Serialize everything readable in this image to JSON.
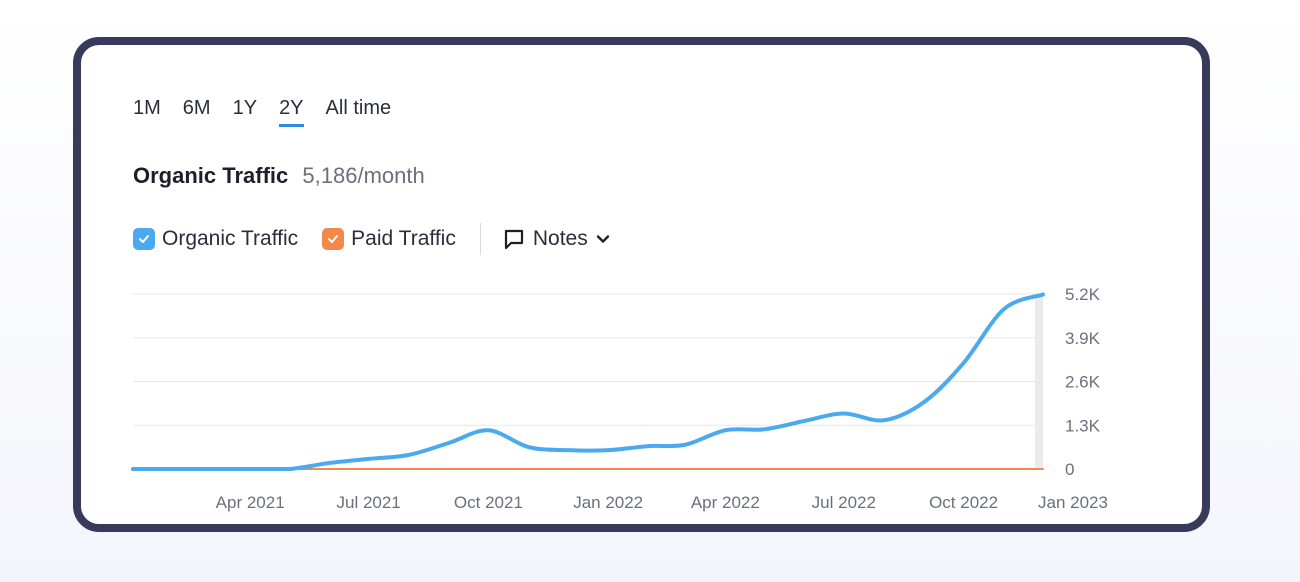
{
  "range_tabs": [
    "1M",
    "6M",
    "1Y",
    "2Y",
    "All time"
  ],
  "active_range": "2Y",
  "summary": {
    "label": "Organic Traffic",
    "value": "5,186/month"
  },
  "legend": {
    "organic_label": "Organic Traffic",
    "paid_label": "Paid Traffic",
    "notes_label": "Notes"
  },
  "colors": {
    "organic": "#4ba9ef",
    "paid": "#f2894a",
    "accent": "#2f8bde",
    "frame": "#383a5c"
  },
  "icons": {
    "notes": "comment-box-icon",
    "dropdown": "chevron-down-icon",
    "check": "check-icon"
  },
  "chart_data": {
    "type": "line",
    "x_tick_labels": [
      "Apr 2021",
      "Jul 2021",
      "Oct 2021",
      "Jan 2022",
      "Apr 2022",
      "Jul 2022",
      "Oct 2022",
      "Jan 2023"
    ],
    "y_tick_labels": [
      "0",
      "1.3K",
      "2.6K",
      "3.9K",
      "5.2K"
    ],
    "y_ticks": [
      0,
      1300,
      2600,
      3900,
      5200
    ],
    "ylim": [
      0,
      5200
    ],
    "y_axis_position": "right",
    "grid": true,
    "series": [
      {
        "name": "Organic Traffic",
        "x": [
          "2021-01-01",
          "2021-02-01",
          "2021-03-01",
          "2021-04-01",
          "2021-05-01",
          "2021-06-01",
          "2021-07-01",
          "2021-08-01",
          "2021-09-01",
          "2021-10-01",
          "2021-11-01",
          "2021-12-01",
          "2022-01-01",
          "2022-02-01",
          "2022-03-01",
          "2022-04-01",
          "2022-05-01",
          "2022-06-01",
          "2022-07-01",
          "2022-08-01",
          "2022-09-01",
          "2022-10-01",
          "2022-11-01",
          "2022-12-01"
        ],
        "values": [
          0,
          0,
          0,
          0,
          0,
          180,
          300,
          420,
          780,
          1150,
          650,
          560,
          560,
          680,
          720,
          1150,
          1180,
          1430,
          1650,
          1450,
          2000,
          3150,
          4750,
          5186
        ]
      },
      {
        "name": "Paid Traffic",
        "x": [
          "2021-01-01",
          "2022-12-01"
        ],
        "values": [
          0,
          0
        ]
      }
    ]
  }
}
